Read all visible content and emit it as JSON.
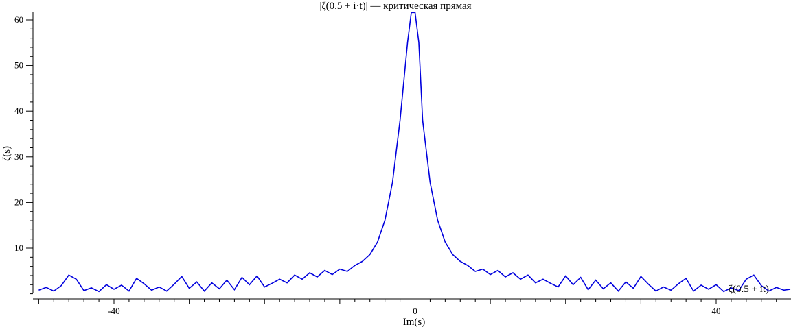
{
  "chart_data": {
    "type": "line",
    "title": "|ζ(0.5 + i·t)| — критическая прямая",
    "xlabel": "Im(s)",
    "ylabel": "|ζ(s)|",
    "xlim": [
      -50,
      50
    ],
    "ylim": [
      0,
      62
    ],
    "x_ticks": [
      -40,
      0,
      40
    ],
    "x_tick_labels": [
      "-40",
      "0",
      "40"
    ],
    "y_ticks": [
      10,
      20,
      30,
      40,
      50,
      60
    ],
    "y_tick_labels": [
      "10",
      "20",
      "30",
      "40",
      "50",
      "60"
    ],
    "grid": false,
    "legend_position": "bottom-right",
    "series": [
      {
        "name": "ζ(0.5 + it)",
        "color": "#0000dd",
        "x": [
          -50,
          -49,
          -48,
          -47,
          -46,
          -45,
          -44,
          -43,
          -42,
          -41,
          -40,
          -39,
          -38,
          -37,
          -36,
          -35,
          -34,
          -33,
          -32,
          -31,
          -30,
          -29,
          -28,
          -27,
          -26,
          -25,
          -24,
          -23,
          -22,
          -21,
          -20,
          -19,
          -18,
          -17,
          -16,
          -15,
          -14,
          -13,
          -12,
          -11,
          -10,
          -9,
          -8,
          -7,
          -6,
          -5,
          -4,
          -3,
          -2,
          -1,
          -0.5,
          0,
          0.5,
          1,
          2,
          3,
          4,
          5,
          6,
          7,
          8,
          9,
          10,
          11,
          12,
          13,
          14,
          15,
          16,
          17,
          18,
          19,
          20,
          21,
          22,
          23,
          24,
          25,
          26,
          27,
          28,
          29,
          30,
          31,
          32,
          33,
          34,
          35,
          36,
          37,
          38,
          39,
          40,
          41,
          42,
          43,
          44,
          45,
          46,
          47,
          48,
          49,
          50
        ],
        "y": [
          0.8,
          1.4,
          0.6,
          1.8,
          4.1,
          3.2,
          0.7,
          1.3,
          0.5,
          2.0,
          1.0,
          1.9,
          0.6,
          3.4,
          2.2,
          0.8,
          1.5,
          0.6,
          2.1,
          3.8,
          1.2,
          2.6,
          0.6,
          2.4,
          1.1,
          3.0,
          0.9,
          3.6,
          2.0,
          3.9,
          1.5,
          2.3,
          3.2,
          2.4,
          4.1,
          3.2,
          4.6,
          3.7,
          5.1,
          4.2,
          5.4,
          4.9,
          6.2,
          7.1,
          8.6,
          11.3,
          16.1,
          24.4,
          38.0,
          55.0,
          61.6,
          61.6,
          55.0,
          38.0,
          24.4,
          16.1,
          11.3,
          8.6,
          7.1,
          6.2,
          4.9,
          5.4,
          4.2,
          5.1,
          3.7,
          4.6,
          3.2,
          4.1,
          2.4,
          3.2,
          2.3,
          1.5,
          3.9,
          2.0,
          3.6,
          0.9,
          3.0,
          1.1,
          2.4,
          0.6,
          2.6,
          1.2,
          3.8,
          2.1,
          0.6,
          1.5,
          0.8,
          2.2,
          3.4,
          0.6,
          1.9,
          1.0,
          2.0,
          0.5,
          1.3,
          0.7,
          3.2,
          4.1,
          1.8,
          0.6,
          1.4,
          0.8,
          1.0
        ]
      }
    ]
  }
}
